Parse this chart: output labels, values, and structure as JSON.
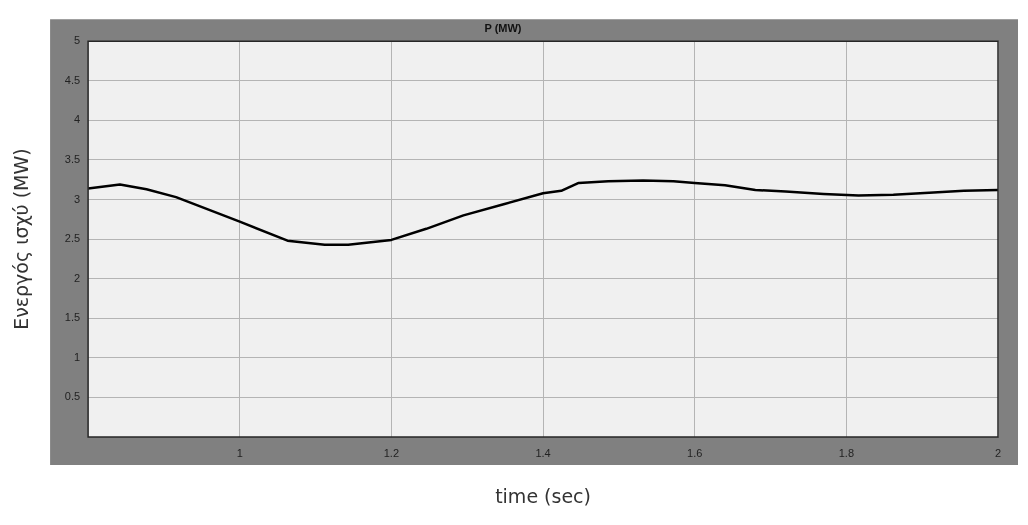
{
  "chart_data": {
    "type": "line",
    "title": "P (MW)",
    "xlabel": "time (sec)",
    "ylabel": "Ενεργός ισχύ (MW)",
    "x": [
      0.8,
      0.842,
      0.877,
      0.916,
      1.0,
      1.063,
      1.112,
      1.143,
      1.2,
      1.246,
      1.295,
      1.348,
      1.4,
      1.424,
      1.447,
      1.486,
      1.532,
      1.572,
      1.6,
      1.64,
      1.68,
      1.72,
      1.77,
      1.816,
      1.862,
      1.915,
      1.955,
      2.0
    ],
    "series": [
      {
        "color": "#000000",
        "values": [
          3.14,
          3.19,
          3.13,
          3.03,
          2.72,
          2.48,
          2.43,
          2.43,
          2.49,
          2.63,
          2.8,
          2.94,
          3.08,
          3.11,
          3.21,
          3.23,
          3.24,
          3.23,
          3.21,
          3.18,
          3.12,
          3.1,
          3.07,
          3.05,
          3.06,
          3.09,
          3.11,
          3.12
        ]
      }
    ],
    "xlim": [
      0.8,
      2
    ],
    "xticks": [
      1,
      1.2,
      1.4,
      1.6,
      1.8,
      2
    ],
    "ylim": [
      0,
      5
    ],
    "yticks": [
      0.5,
      1,
      1.5,
      2,
      2.5,
      3,
      3.5,
      4,
      4.5,
      5
    ],
    "grid": true,
    "legend": false,
    "marker": "none",
    "line_style": "solid"
  }
}
